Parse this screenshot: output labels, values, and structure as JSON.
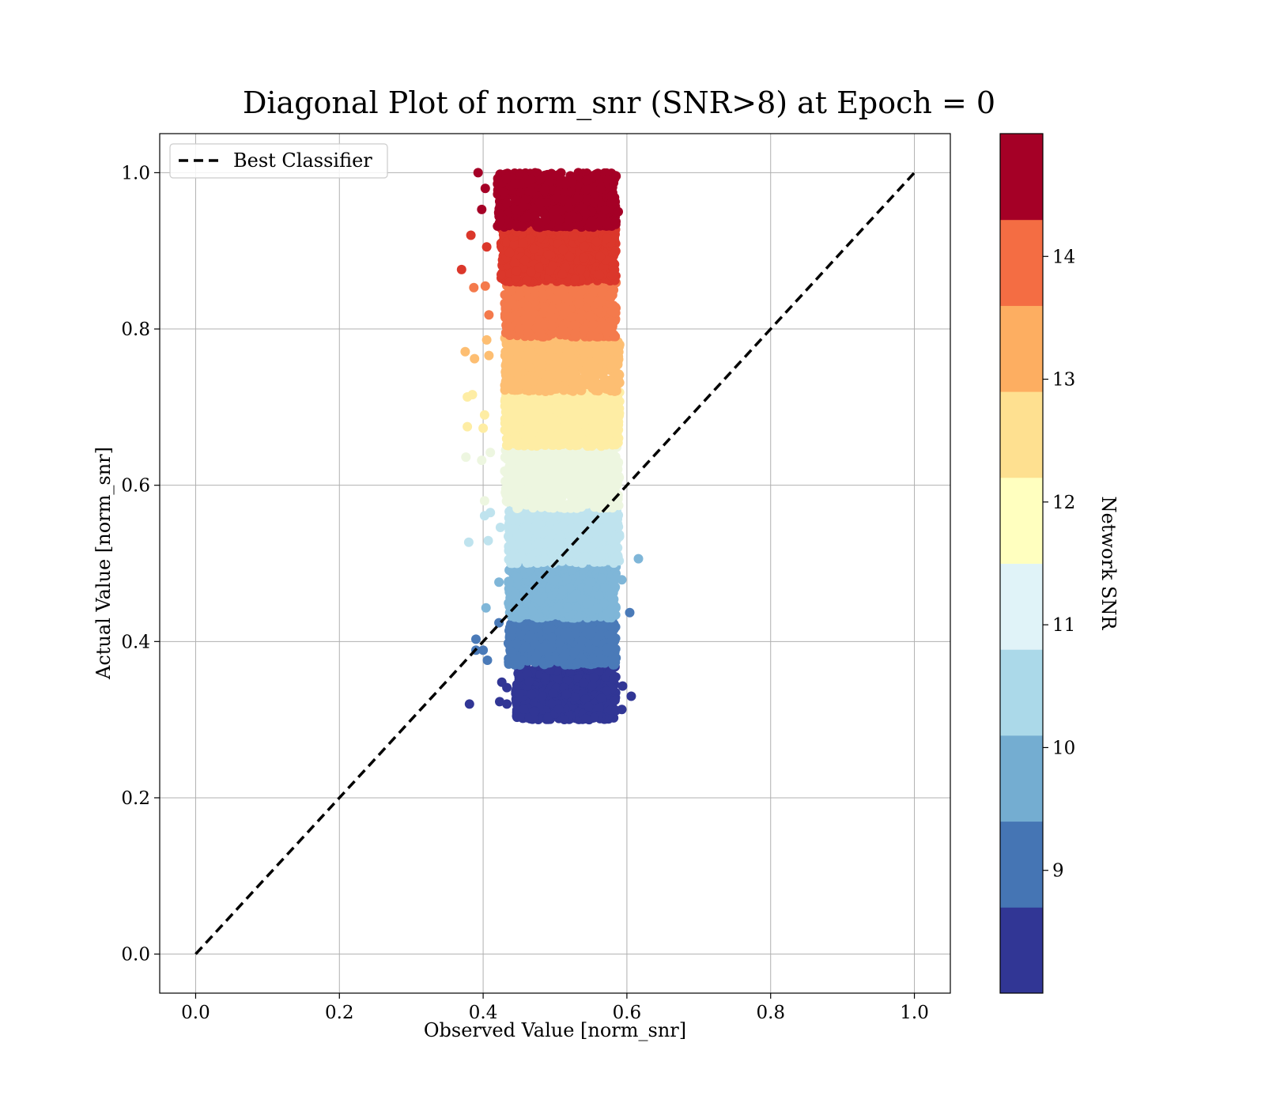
{
  "chart_data": {
    "type": "scatter",
    "title": "Diagonal Plot of norm_snr (SNR>8) at Epoch = 0",
    "xlabel": "Observed Value [norm_snr]",
    "ylabel": "Actual Value [norm_snr]",
    "xlim": [
      -0.05,
      1.05
    ],
    "ylim": [
      -0.05,
      1.05
    ],
    "xticks": [
      "0.0",
      "0.2",
      "0.4",
      "0.6",
      "0.8",
      "1.0"
    ],
    "yticks": [
      "0.0",
      "0.2",
      "0.4",
      "0.6",
      "0.8",
      "1.0"
    ],
    "grid": true,
    "legend": {
      "placement": "upper-left",
      "entries": [
        {
          "label": "Best Classifier",
          "style": "black dashed line"
        }
      ]
    },
    "reference_line": {
      "label": "Best Classifier",
      "x": [
        0.0,
        1.0
      ],
      "y": [
        0.0,
        1.0
      ]
    },
    "colorbar": {
      "label": "Network SNR",
      "range": [
        8,
        15
      ],
      "ticks": [
        "9",
        "10",
        "11",
        "12",
        "13",
        "14"
      ],
      "colors": [
        "#313695",
        "#4575b4",
        "#74add1",
        "#abd9e9",
        "#e0f3f8",
        "#ffffbf",
        "#fee090",
        "#fdae61",
        "#f46d43",
        "#a50026"
      ]
    },
    "bands": [
      {
        "snr": 8.35,
        "y_range": [
          0.3,
          0.37
        ],
        "x_range": [
          0.445,
          0.585
        ],
        "color": "#313695"
      },
      {
        "snr": 9.05,
        "y_range": [
          0.37,
          0.43
        ],
        "x_range": [
          0.435,
          0.585
        ],
        "color": "#4a7ab8"
      },
      {
        "snr": 9.75,
        "y_range": [
          0.43,
          0.5
        ],
        "x_range": [
          0.435,
          0.585
        ],
        "color": "#7fb6d8"
      },
      {
        "snr": 10.45,
        "y_range": [
          0.5,
          0.57
        ],
        "x_range": [
          0.435,
          0.59
        ],
        "color": "#bfe3ee"
      },
      {
        "snr": 11.15,
        "y_range": [
          0.57,
          0.65
        ],
        "x_range": [
          0.43,
          0.59
        ],
        "color": "#edf6e0"
      },
      {
        "snr": 11.85,
        "y_range": [
          0.65,
          0.72
        ],
        "x_range": [
          0.43,
          0.59
        ],
        "color": "#feeda4"
      },
      {
        "snr": 12.55,
        "y_range": [
          0.72,
          0.79
        ],
        "x_range": [
          0.43,
          0.59
        ],
        "color": "#fdbe72"
      },
      {
        "snr": 13.25,
        "y_range": [
          0.79,
          0.86
        ],
        "x_range": [
          0.43,
          0.585
        ],
        "color": "#f47a4c"
      },
      {
        "snr": 13.95,
        "y_range": [
          0.86,
          0.93
        ],
        "x_range": [
          0.425,
          0.585
        ],
        "color": "#db372b"
      },
      {
        "snr": 14.65,
        "y_range": [
          0.93,
          1.0
        ],
        "x_range": [
          0.42,
          0.585
        ],
        "color": "#a50026"
      }
    ],
    "outliers": [
      {
        "x": 0.393,
        "y": 1.0,
        "color": "#a50026"
      },
      {
        "x": 0.403,
        "y": 0.98,
        "color": "#a50026"
      },
      {
        "x": 0.398,
        "y": 0.953,
        "color": "#a50026"
      },
      {
        "x": 0.588,
        "y": 0.95,
        "color": "#a50026"
      },
      {
        "x": 0.383,
        "y": 0.92,
        "color": "#db372b"
      },
      {
        "x": 0.37,
        "y": 0.876,
        "color": "#db372b"
      },
      {
        "x": 0.405,
        "y": 0.905,
        "color": "#db372b"
      },
      {
        "x": 0.387,
        "y": 0.853,
        "color": "#f47a4c"
      },
      {
        "x": 0.403,
        "y": 0.855,
        "color": "#f47a4c"
      },
      {
        "x": 0.408,
        "y": 0.818,
        "color": "#f47a4c"
      },
      {
        "x": 0.375,
        "y": 0.771,
        "color": "#fdbe72"
      },
      {
        "x": 0.388,
        "y": 0.762,
        "color": "#fdbe72"
      },
      {
        "x": 0.405,
        "y": 0.786,
        "color": "#fdbe72"
      },
      {
        "x": 0.408,
        "y": 0.766,
        "color": "#fdbe72"
      },
      {
        "x": 0.378,
        "y": 0.713,
        "color": "#feeda4"
      },
      {
        "x": 0.385,
        "y": 0.716,
        "color": "#feeda4"
      },
      {
        "x": 0.378,
        "y": 0.675,
        "color": "#feeda4"
      },
      {
        "x": 0.402,
        "y": 0.69,
        "color": "#feeda4"
      },
      {
        "x": 0.4,
        "y": 0.673,
        "color": "#feeda4"
      },
      {
        "x": 0.376,
        "y": 0.636,
        "color": "#edf6e0"
      },
      {
        "x": 0.398,
        "y": 0.632,
        "color": "#edf6e0"
      },
      {
        "x": 0.41,
        "y": 0.642,
        "color": "#edf6e0"
      },
      {
        "x": 0.402,
        "y": 0.58,
        "color": "#edf6e0"
      },
      {
        "x": 0.402,
        "y": 0.561,
        "color": "#bfe3ee"
      },
      {
        "x": 0.41,
        "y": 0.565,
        "color": "#bfe3ee"
      },
      {
        "x": 0.38,
        "y": 0.527,
        "color": "#bfe3ee"
      },
      {
        "x": 0.407,
        "y": 0.529,
        "color": "#bfe3ee"
      },
      {
        "x": 0.424,
        "y": 0.546,
        "color": "#bfe3ee"
      },
      {
        "x": 0.616,
        "y": 0.506,
        "color": "#7fb6d8"
      },
      {
        "x": 0.422,
        "y": 0.476,
        "color": "#7fb6d8"
      },
      {
        "x": 0.404,
        "y": 0.443,
        "color": "#7fb6d8"
      },
      {
        "x": 0.593,
        "y": 0.479,
        "color": "#7fb6d8"
      },
      {
        "x": 0.604,
        "y": 0.437,
        "color": "#4a7ab8"
      },
      {
        "x": 0.422,
        "y": 0.424,
        "color": "#4a7ab8"
      },
      {
        "x": 0.39,
        "y": 0.403,
        "color": "#4a7ab8"
      },
      {
        "x": 0.39,
        "y": 0.389,
        "color": "#4a7ab8"
      },
      {
        "x": 0.4,
        "y": 0.389,
        "color": "#4a7ab8"
      },
      {
        "x": 0.406,
        "y": 0.376,
        "color": "#4a7ab8"
      },
      {
        "x": 0.426,
        "y": 0.348,
        "color": "#313695"
      },
      {
        "x": 0.433,
        "y": 0.341,
        "color": "#313695"
      },
      {
        "x": 0.423,
        "y": 0.323,
        "color": "#313695"
      },
      {
        "x": 0.433,
        "y": 0.32,
        "color": "#313695"
      },
      {
        "x": 0.381,
        "y": 0.32,
        "color": "#313695"
      },
      {
        "x": 0.594,
        "y": 0.343,
        "color": "#313695"
      },
      {
        "x": 0.606,
        "y": 0.33,
        "color": "#313695"
      },
      {
        "x": 0.593,
        "y": 0.313,
        "color": "#313695"
      }
    ]
  }
}
